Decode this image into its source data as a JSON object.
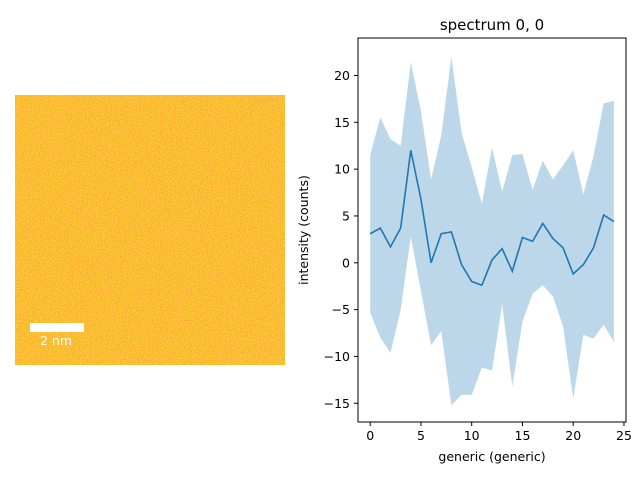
{
  "image_panel": {
    "scalebar_label": "2 nm",
    "colors": {
      "base": "#ff5a00",
      "speckle_light": "#ffb000",
      "speckle_dark": "#e01000",
      "scalebar": "#ffffff"
    }
  },
  "chart_data": {
    "type": "line",
    "title": "spectrum 0, 0",
    "xlabel": "generic (generic)",
    "ylabel": "intensity (counts)",
    "xlim": [
      -1.2,
      25.2
    ],
    "ylim": [
      -17,
      24
    ],
    "xticks": [
      0,
      5,
      10,
      15,
      20,
      25
    ],
    "yticks": [
      -15,
      -10,
      -5,
      0,
      5,
      10,
      15,
      20
    ],
    "grid": false,
    "x": [
      0,
      1,
      2,
      3,
      4,
      5,
      6,
      7,
      8,
      9,
      10,
      11,
      12,
      13,
      14,
      15,
      16,
      17,
      18,
      19,
      20,
      21,
      22,
      23,
      24
    ],
    "series": [
      {
        "values": [
          3.1,
          3.7,
          1.7,
          3.7,
          12.0,
          6.8,
          0.0,
          3.1,
          3.3,
          -0.2,
          -2.0,
          -2.4,
          0.3,
          1.5,
          -0.9,
          2.7,
          2.3,
          4.2,
          2.6,
          1.6,
          -1.2,
          -0.2,
          1.6,
          5.1,
          4.4
        ],
        "lower": [
          -5.3,
          -8.0,
          -9.6,
          -5.0,
          2.8,
          -3.0,
          -8.8,
          -7.3,
          -15.2,
          -14.1,
          -14.1,
          -11.2,
          -11.5,
          -4.4,
          -13.2,
          -6.3,
          -3.3,
          -2.4,
          -3.6,
          -6.8,
          -14.5,
          -7.7,
          -8.1,
          -6.6,
          -8.4
        ],
        "upper": [
          11.5,
          15.5,
          13.2,
          12.5,
          21.4,
          16.2,
          8.9,
          13.6,
          22.0,
          13.9,
          10.2,
          6.3,
          12.3,
          7.6,
          11.5,
          11.6,
          7.8,
          10.9,
          8.9,
          10.4,
          12.0,
          7.3,
          11.4,
          17.0,
          17.3
        ]
      }
    ],
    "colors": {
      "line": "#1f77b4",
      "band": "#bcd6ea"
    }
  }
}
